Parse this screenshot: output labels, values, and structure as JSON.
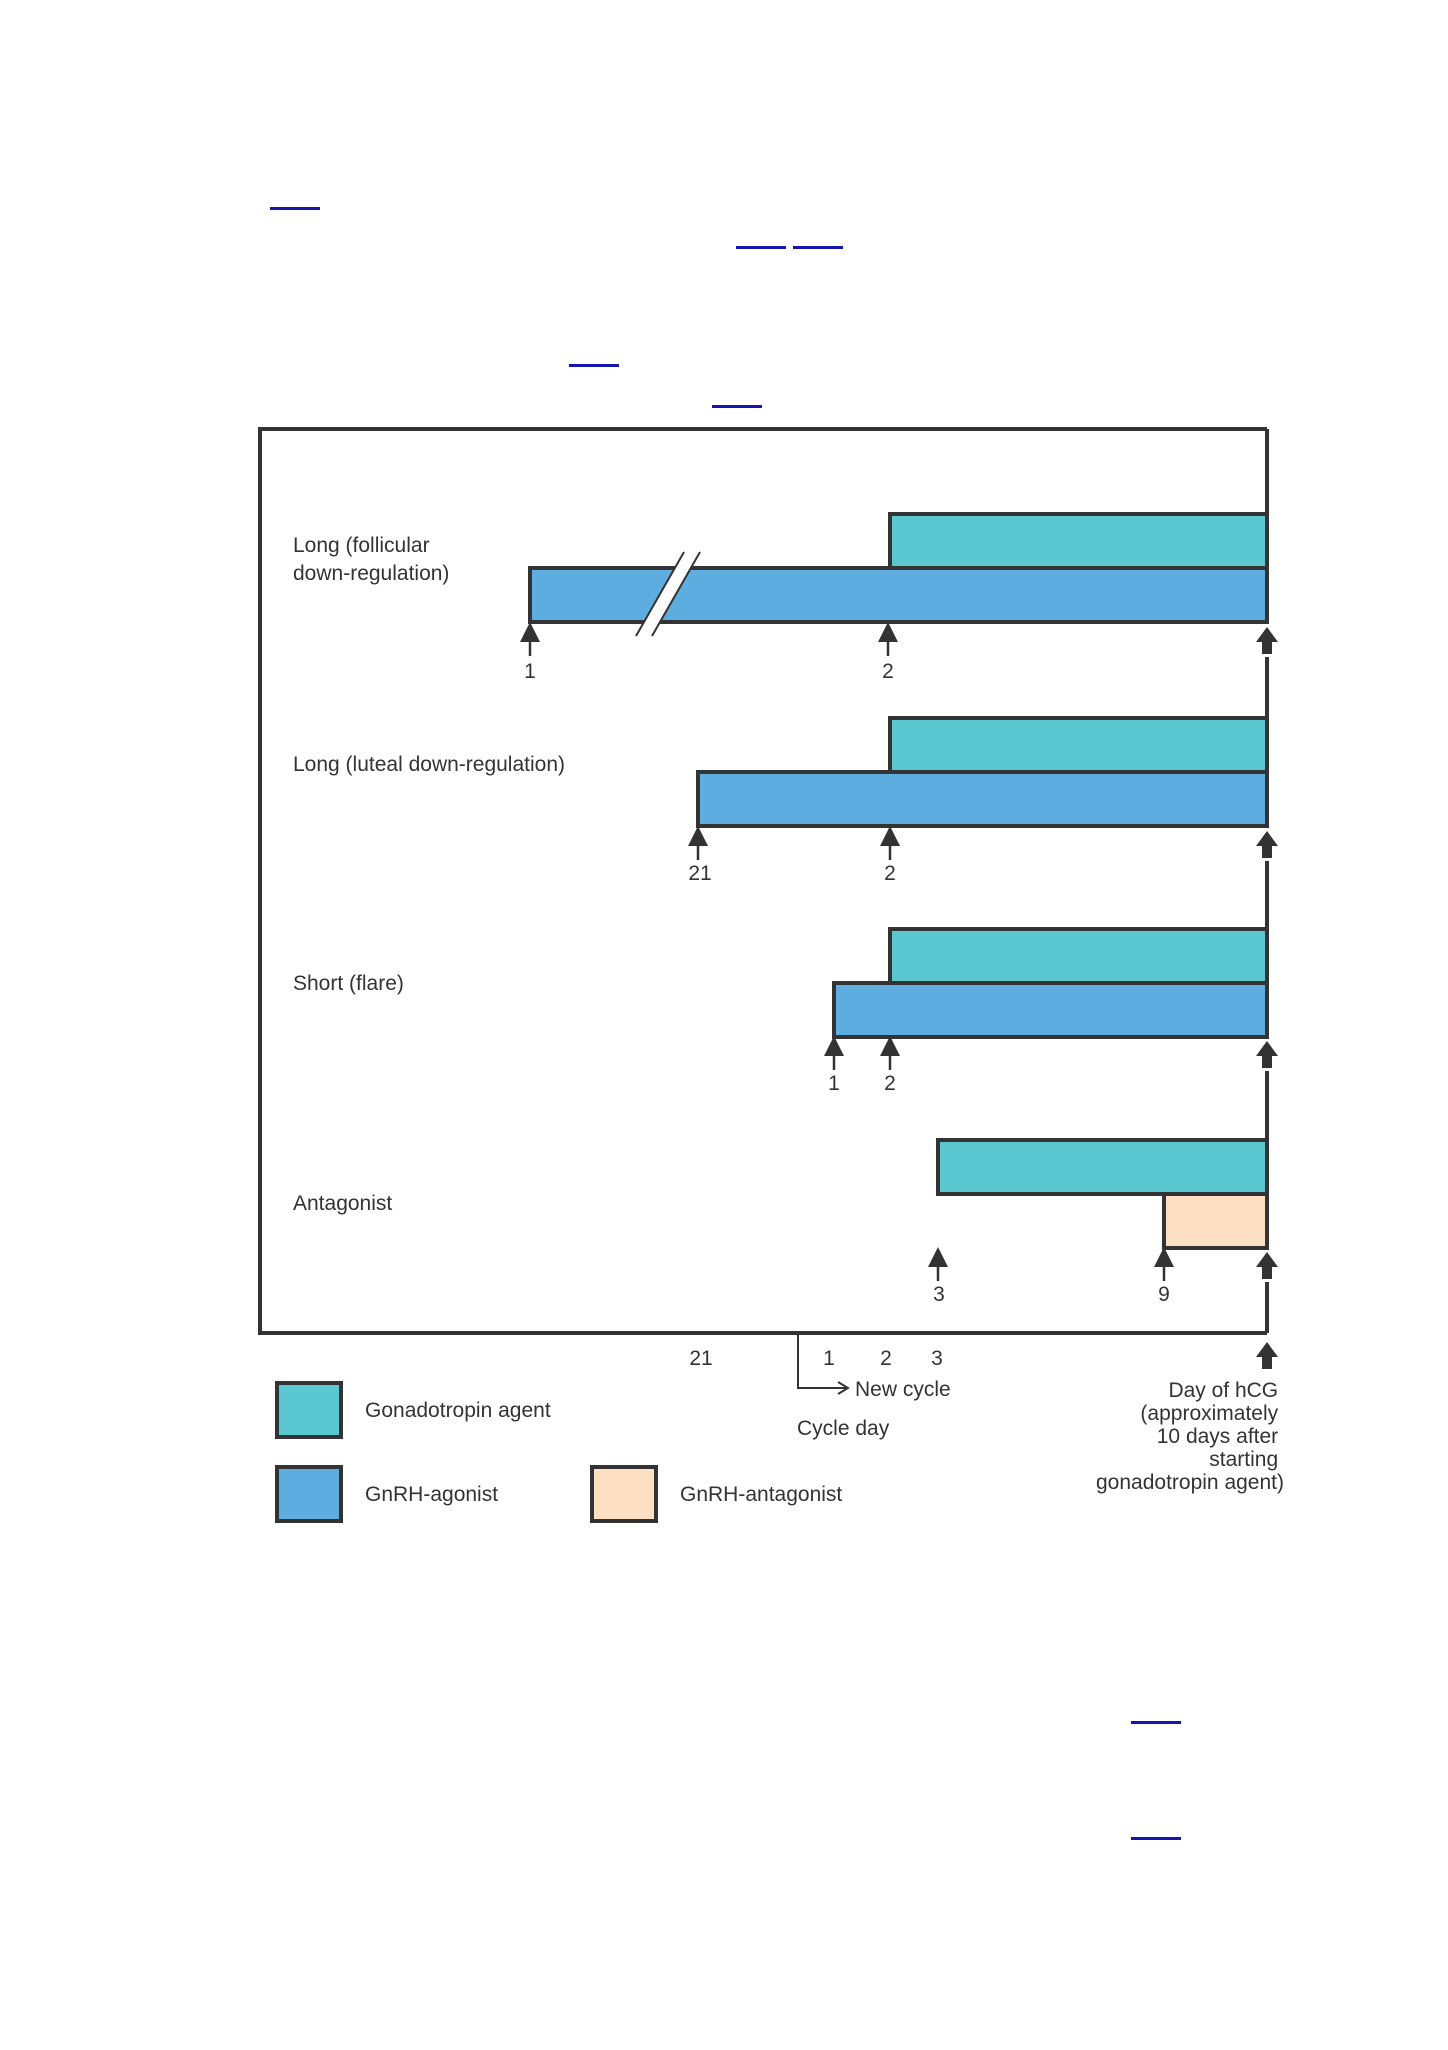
{
  "colors": {
    "gonadotropin": "#5bc7d0",
    "agonist": "#5dade0",
    "antagonist": "#fde0c4",
    "stroke": "#333333",
    "link": "#1515b0"
  },
  "protocols": [
    {
      "label_lines": [
        "Long (follicular",
        "down-regulation)"
      ],
      "markers": [
        "1",
        "2"
      ]
    },
    {
      "label_lines": [
        "Long (luteal down-regulation)"
      ],
      "markers": [
        "21",
        "2"
      ]
    },
    {
      "label_lines": [
        "Short (flare)"
      ],
      "markers": [
        "1",
        "2"
      ]
    },
    {
      "label_lines": [
        "Antagonist"
      ],
      "markers": [
        "3",
        "9"
      ]
    }
  ],
  "axis": {
    "day_21": "21",
    "day_1": "1",
    "day_2": "2",
    "day_3": "3",
    "new_cycle": "New cycle",
    "cycle_day": "Cycle day",
    "hcg_lines": [
      "Day of hCG",
      "(approximately",
      "10 days after",
      "starting",
      "gonadotropin agent)"
    ]
  },
  "legend": {
    "gonadotropin": "Gonadotropin agent",
    "agonist": "GnRH-agonist",
    "antagonist": "GnRH-antagonist"
  }
}
